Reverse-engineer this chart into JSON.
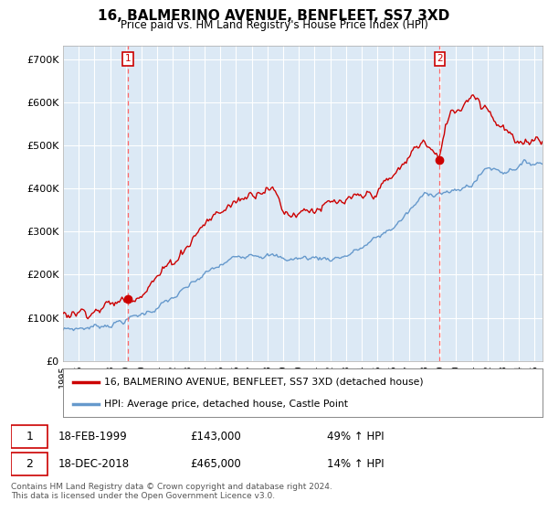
{
  "title": "16, BALMERINO AVENUE, BENFLEET, SS7 3XD",
  "subtitle": "Price paid vs. HM Land Registry's House Price Index (HPI)",
  "legend_line1": "16, BALMERINO AVENUE, BENFLEET, SS7 3XD (detached house)",
  "legend_line2": "HPI: Average price, detached house, Castle Point",
  "transaction1_date": "18-FEB-1999",
  "transaction1_price": "£143,000",
  "transaction1_hpi": "49% ↑ HPI",
  "transaction2_date": "18-DEC-2018",
  "transaction2_price": "£465,000",
  "transaction2_hpi": "14% ↑ HPI",
  "footnote": "Contains HM Land Registry data © Crown copyright and database right 2024.\nThis data is licensed under the Open Government Licence v3.0.",
  "house_color": "#cc0000",
  "hpi_color": "#6699cc",
  "marker1_x": 1999.12,
  "marker1_y": 143000,
  "marker2_x": 2018.96,
  "marker2_y": 465000,
  "vline1_x": 1999.12,
  "vline2_x": 2018.96,
  "ylim": [
    0,
    730000
  ],
  "xlim_start": 1995,
  "xlim_end": 2025.5,
  "chart_bg_color": "#dce9f5",
  "fig_bg_color": "#ffffff",
  "grid_color": "#ffffff"
}
